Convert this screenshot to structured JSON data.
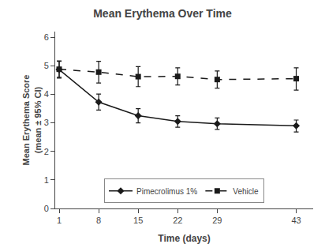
{
  "chart_data": {
    "type": "line",
    "title": "Mean Erythema Over Time",
    "xlabel": "Time (days)",
    "ylabel": "Mean Erythema Score\n(mean ± 95% CI)",
    "x": [
      1,
      8,
      15,
      22,
      29,
      43
    ],
    "series": [
      {
        "name": "Pimecrolimus 1%",
        "color": "#1a1a1a",
        "marker": "diamond",
        "line_style": "solid",
        "values": [
          4.87,
          3.73,
          3.25,
          3.05,
          2.97,
          2.9
        ],
        "err_low": [
          0.3,
          0.28,
          0.25,
          0.2,
          0.2,
          0.22
        ],
        "err_high": [
          0.3,
          0.28,
          0.25,
          0.2,
          0.2,
          0.2
        ]
      },
      {
        "name": "Vehicle",
        "color": "#1a1a1a",
        "marker": "square",
        "line_style": "dashed",
        "values": [
          4.88,
          4.78,
          4.62,
          4.63,
          4.52,
          4.55
        ],
        "err_low": [
          0.28,
          0.38,
          0.35,
          0.3,
          0.3,
          0.4
        ],
        "err_high": [
          0.28,
          0.38,
          0.35,
          0.3,
          0.3,
          0.38
        ]
      }
    ],
    "xlim": [
      0.3,
      46
    ],
    "xticks": [
      1,
      8,
      15,
      22,
      29,
      43
    ],
    "ylim": [
      0,
      6.2
    ],
    "yticks": [
      0,
      1,
      2,
      3,
      4,
      5,
      6
    ],
    "grid": false,
    "legend": "bottom"
  }
}
